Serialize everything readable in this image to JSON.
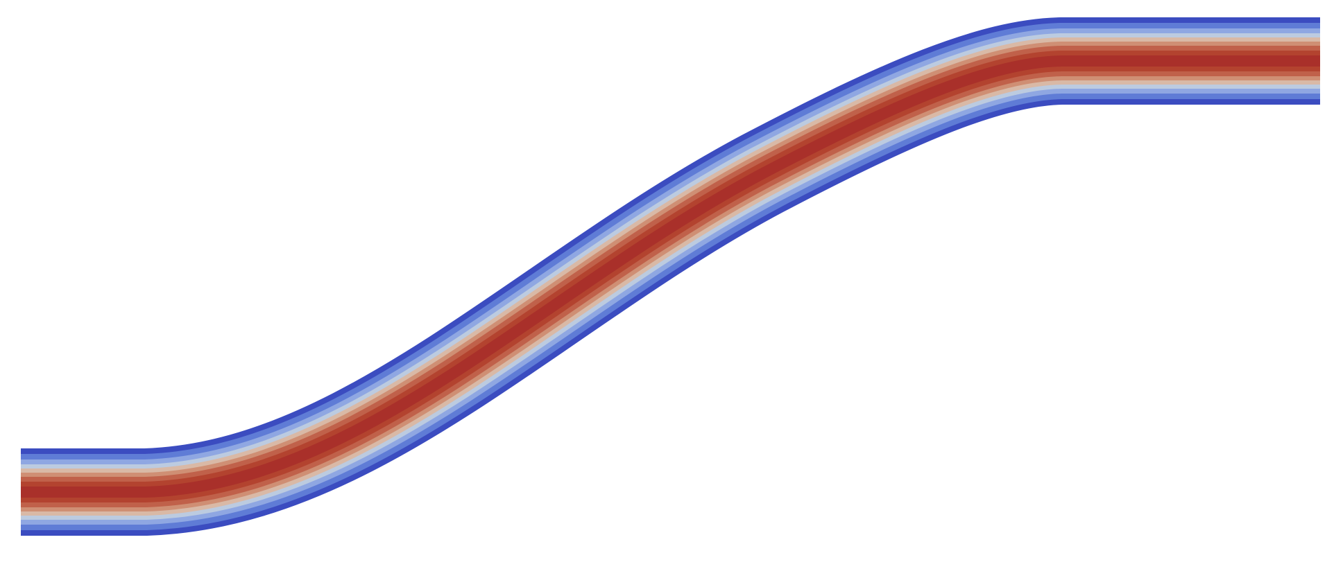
{
  "scene": {
    "background_color": "#ffffff",
    "colormap": {
      "name": "cool-to-warm",
      "stops": [
        {
          "value": 0.0,
          "color": "#3b4cc0"
        },
        {
          "value": 0.18,
          "color": "#7a96e8"
        },
        {
          "value": 0.32,
          "color": "#b6c6e0"
        },
        {
          "value": 0.44,
          "color": "#d7b7a4"
        },
        {
          "value": 0.6,
          "color": "#c46a4f"
        },
        {
          "value": 0.8,
          "color": "#b4402f"
        },
        {
          "value": 1.0,
          "color": "#a9302a"
        }
      ]
    },
    "object": "s-bend-channel-velocity-field"
  }
}
